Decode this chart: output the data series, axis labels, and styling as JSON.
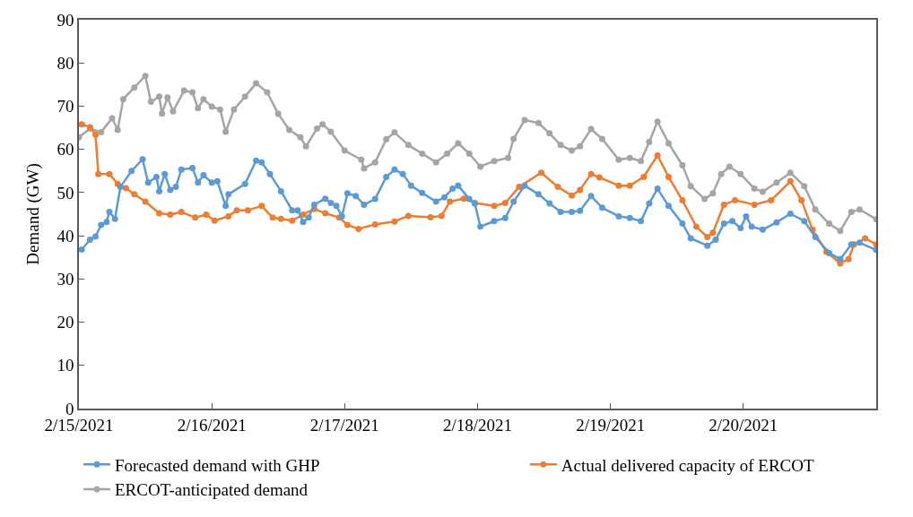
{
  "chart_data": {
    "type": "line",
    "ylabel": "Demand (GW)",
    "xlim": [
      "2021-02-15",
      "2021-02-21"
    ],
    "ylim": [
      0,
      90
    ],
    "xticks": [
      {
        "value": "2021-02-15",
        "label": "2/15/2021"
      },
      {
        "value": "2021-02-16",
        "label": "2/16/2021"
      },
      {
        "value": "2021-02-17",
        "label": "2/17/2021"
      },
      {
        "value": "2021-02-18",
        "label": "2/18/2021"
      },
      {
        "value": "2021-02-19",
        "label": "2/19/2021"
      },
      {
        "value": "2021-02-20",
        "label": "2/20/2021"
      },
      {
        "value": "2021-02-21",
        "label": null
      }
    ],
    "yticks": [
      0,
      10,
      20,
      30,
      40,
      50,
      60,
      70,
      80,
      90
    ],
    "legend": "bottom",
    "marker": "circle",
    "line_style": "solid",
    "series": [
      {
        "name": "Forecasted demand with GHP",
        "color": "#5b9bd5",
        "x": [
          "2021-02-15T00:30",
          "2021-02-15T02:00",
          "2021-02-15T03:00",
          "2021-02-15T04:00",
          "2021-02-15T05:00",
          "2021-02-15T05:30",
          "2021-02-15T06:30",
          "2021-02-15T07:30",
          "2021-02-15T09:30",
          "2021-02-15T11:30",
          "2021-02-15T12:30",
          "2021-02-15T14:00",
          "2021-02-15T14:30",
          "2021-02-15T15:30",
          "2021-02-15T16:30",
          "2021-02-15T17:30",
          "2021-02-15T18:30",
          "2021-02-15T20:30",
          "2021-02-15T21:30",
          "2021-02-15T22:30",
          "2021-02-16T00:00",
          "2021-02-16T01:00",
          "2021-02-16T02:30",
          "2021-02-16T03:00",
          "2021-02-16T06:00",
          "2021-02-16T08:00",
          "2021-02-16T09:00",
          "2021-02-16T10:30",
          "2021-02-16T12:30",
          "2021-02-16T14:30",
          "2021-02-16T15:30",
          "2021-02-16T16:30",
          "2021-02-16T17:30",
          "2021-02-16T18:30",
          "2021-02-16T20:30",
          "2021-02-16T21:30",
          "2021-02-16T22:30",
          "2021-02-16T23:30",
          "2021-02-17T00:30",
          "2021-02-17T02:00",
          "2021-02-17T03:30",
          "2021-02-17T05:30",
          "2021-02-17T07:30",
          "2021-02-17T09:00",
          "2021-02-17T10:30",
          "2021-02-17T12:00",
          "2021-02-17T14:00",
          "2021-02-17T16:30",
          "2021-02-17T18:00",
          "2021-02-17T19:30",
          "2021-02-17T20:30",
          "2021-02-17T22:30",
          "2021-02-17T23:30",
          "2021-02-18T00:30",
          "2021-02-18T03:00",
          "2021-02-18T05:00",
          "2021-02-18T06:30",
          "2021-02-18T08:30",
          "2021-02-18T11:00",
          "2021-02-18T13:00",
          "2021-02-18T15:00",
          "2021-02-18T17:00",
          "2021-02-18T18:30",
          "2021-02-18T20:30",
          "2021-02-18T22:30",
          "2021-02-19T01:30",
          "2021-02-19T03:30",
          "2021-02-19T05:30",
          "2021-02-19T07:00",
          "2021-02-19T08:30",
          "2021-02-19T10:30",
          "2021-02-19T13:00",
          "2021-02-19T14:30",
          "2021-02-19T17:30",
          "2021-02-19T19:00",
          "2021-02-19T20:30",
          "2021-02-19T22:00",
          "2021-02-19T23:30",
          "2021-02-20T00:30",
          "2021-02-20T01:30",
          "2021-02-20T03:30",
          "2021-02-20T06:00",
          "2021-02-20T08:30",
          "2021-02-20T11:00",
          "2021-02-20T13:00",
          "2021-02-20T15:30",
          "2021-02-20T17:30",
          "2021-02-20T19:30",
          "2021-02-20T21:00",
          "2021-02-21T00:00"
        ],
        "values": [
          36.8,
          39.1,
          39.8,
          42.5,
          43.2,
          45.5,
          43.9,
          51.3,
          55,
          57.7,
          52.3,
          53.6,
          50.3,
          54.3,
          50.6,
          51.3,
          55.3,
          55.7,
          52.3,
          54,
          52.3,
          52.6,
          46.9,
          49.6,
          52,
          57.4,
          57,
          54.3,
          50.3,
          45.9,
          45.9,
          43.2,
          44.2,
          47.2,
          48.6,
          47.6,
          46.9,
          44.5,
          49.8,
          49.2,
          47.2,
          48.5,
          53.6,
          55.3,
          54.3,
          51.6,
          49.9,
          47.9,
          48.9,
          50.9,
          51.6,
          48.5,
          47.5,
          42.1,
          43.4,
          44.1,
          47.9,
          51.6,
          49.6,
          47.5,
          45.5,
          45.5,
          45.8,
          49.2,
          46.5,
          44.5,
          44.1,
          43.4,
          47.5,
          50.9,
          46.9,
          42.8,
          39.4,
          37.7,
          39.1,
          42.8,
          43.4,
          41.8,
          44.5,
          42.1,
          41.4,
          43.1,
          45.1,
          43.4,
          39.7,
          36,
          34.6,
          38,
          38.4,
          36.7
        ]
      },
      {
        "name": "Actual delivered capacity of ERCOT",
        "color": "#ed7d31",
        "x": [
          "2021-02-15T00:30",
          "2021-02-15T02:00",
          "2021-02-15T03:00",
          "2021-02-15T03:30",
          "2021-02-15T05:30",
          "2021-02-15T07:00",
          "2021-02-15T08:30",
          "2021-02-15T10:00",
          "2021-02-15T12:00",
          "2021-02-15T14:30",
          "2021-02-15T16:30",
          "2021-02-15T18:30",
          "2021-02-15T21:00",
          "2021-02-15T23:00",
          "2021-02-16T00:30",
          "2021-02-16T03:00",
          "2021-02-16T04:30",
          "2021-02-16T06:30",
          "2021-02-16T09:00",
          "2021-02-16T11:00",
          "2021-02-16T12:30",
          "2021-02-16T14:30",
          "2021-02-16T16:30",
          "2021-02-16T18:30",
          "2021-02-16T20:30",
          "2021-02-16T23:00",
          "2021-02-17T00:30",
          "2021-02-17T02:30",
          "2021-02-17T05:30",
          "2021-02-17T09:00",
          "2021-02-17T11:30",
          "2021-02-17T15:30",
          "2021-02-17T17:30",
          "2021-02-17T19:00",
          "2021-02-17T21:30",
          "2021-02-17T23:30",
          "2021-02-18T03:00",
          "2021-02-18T05:00",
          "2021-02-18T07:30",
          "2021-02-18T11:30",
          "2021-02-18T14:30",
          "2021-02-18T17:00",
          "2021-02-18T18:30",
          "2021-02-18T20:30",
          "2021-02-18T22:00",
          "2021-02-19T01:30",
          "2021-02-19T03:30",
          "2021-02-19T06:00",
          "2021-02-19T08:30",
          "2021-02-19T10:30",
          "2021-02-19T13:00",
          "2021-02-19T15:30",
          "2021-02-19T17:30",
          "2021-02-19T18:30",
          "2021-02-19T20:30",
          "2021-02-19T22:30",
          "2021-02-20T02:00",
          "2021-02-20T05:00",
          "2021-02-20T08:30",
          "2021-02-20T10:30",
          "2021-02-20T12:30",
          "2021-02-20T15:00",
          "2021-02-20T17:30",
          "2021-02-20T19:00",
          "2021-02-20T20:00",
          "2021-02-20T22:00",
          "2021-02-21T00:00"
        ],
        "values": [
          65.8,
          65.1,
          63.4,
          54.3,
          54.3,
          52,
          51,
          49.6,
          47.9,
          45.2,
          44.9,
          45.5,
          44.2,
          44.9,
          43.5,
          44.5,
          45.9,
          45.9,
          46.9,
          44.2,
          43.9,
          43.5,
          44.9,
          46.2,
          45.2,
          44.2,
          42.5,
          41.6,
          42.6,
          43.3,
          44.6,
          44.3,
          44.6,
          47.9,
          48.6,
          47.6,
          46.9,
          47.6,
          51.3,
          54.6,
          51.3,
          49.3,
          50.6,
          54.3,
          53.5,
          51.6,
          51.6,
          53.6,
          58.6,
          53.6,
          48.2,
          42.1,
          39.7,
          40.7,
          47.2,
          48.2,
          47.2,
          48.2,
          52.6,
          48.2,
          41.4,
          36.3,
          33.6,
          34.6,
          38,
          39.4,
          38
        ]
      },
      {
        "name": "ERCOT-anticipated demand",
        "color": "#a5a5a5",
        "x": [
          "2021-02-15T00:00",
          "2021-02-15T02:00",
          "2021-02-15T04:00",
          "2021-02-15T06:00",
          "2021-02-15T07:00",
          "2021-02-15T08:00",
          "2021-02-15T10:00",
          "2021-02-15T12:00",
          "2021-02-15T13:00",
          "2021-02-15T14:30",
          "2021-02-15T15:00",
          "2021-02-15T16:00",
          "2021-02-15T17:00",
          "2021-02-15T19:00",
          "2021-02-15T20:30",
          "2021-02-15T21:30",
          "2021-02-15T22:30",
          "2021-02-16T00:00",
          "2021-02-16T01:30",
          "2021-02-16T02:30",
          "2021-02-16T04:00",
          "2021-02-16T06:00",
          "2021-02-16T08:00",
          "2021-02-16T10:00",
          "2021-02-16T12:00",
          "2021-02-16T14:00",
          "2021-02-16T16:00",
          "2021-02-16T17:00",
          "2021-02-16T19:00",
          "2021-02-16T20:00",
          "2021-02-16T21:30",
          "2021-02-17T00:00",
          "2021-02-17T03:00",
          "2021-02-17T03:30",
          "2021-02-17T05:30",
          "2021-02-17T07:30",
          "2021-02-17T09:00",
          "2021-02-17T11:30",
          "2021-02-17T14:00",
          "2021-02-17T16:30",
          "2021-02-17T18:30",
          "2021-02-17T20:30",
          "2021-02-17T22:30",
          "2021-02-18T00:30",
          "2021-02-18T03:00",
          "2021-02-18T05:30",
          "2021-02-18T06:30",
          "2021-02-18T08:30",
          "2021-02-18T11:00",
          "2021-02-18T13:00",
          "2021-02-18T15:00",
          "2021-02-18T17:00",
          "2021-02-18T18:30",
          "2021-02-18T20:30",
          "2021-02-18T22:30",
          "2021-02-19T01:30",
          "2021-02-19T03:30",
          "2021-02-19T05:30",
          "2021-02-19T07:00",
          "2021-02-19T08:30",
          "2021-02-19T10:30",
          "2021-02-19T13:00",
          "2021-02-19T14:30",
          "2021-02-19T17:00",
          "2021-02-19T18:30",
          "2021-02-19T20:00",
          "2021-02-19T21:30",
          "2021-02-19T23:30",
          "2021-02-20T02:00",
          "2021-02-20T03:30",
          "2021-02-20T06:00",
          "2021-02-20T08:30",
          "2021-02-20T11:00",
          "2021-02-20T13:00",
          "2021-02-20T15:30",
          "2021-02-20T17:30",
          "2021-02-20T19:30",
          "2021-02-20T21:00",
          "2021-02-21T00:00"
        ],
        "values": [
          62.8,
          64.8,
          64,
          67.2,
          64.5,
          71.6,
          74.3,
          77,
          71,
          72.2,
          68.3,
          72,
          68.8,
          73.6,
          73.2,
          69.5,
          71.6,
          69.9,
          69.2,
          64.1,
          69.2,
          72.2,
          75.3,
          73.2,
          68.2,
          64.5,
          62.8,
          60.7,
          64.8,
          65.8,
          64.1,
          59.7,
          57.6,
          55.6,
          57,
          62.3,
          63.9,
          61,
          59,
          57,
          59,
          61.4,
          59,
          56,
          57.3,
          58,
          62.4,
          66.8,
          66.1,
          63.7,
          61,
          59.7,
          60.7,
          64.7,
          62.4,
          57.6,
          58,
          57.3,
          61.7,
          66.4,
          61.4,
          56.3,
          51.5,
          48.5,
          49.8,
          54.3,
          56,
          54.3,
          50.9,
          50.2,
          52.3,
          54.6,
          51.5,
          46.1,
          42.8,
          41.1,
          45.5,
          46.1,
          43.8
        ]
      }
    ]
  }
}
